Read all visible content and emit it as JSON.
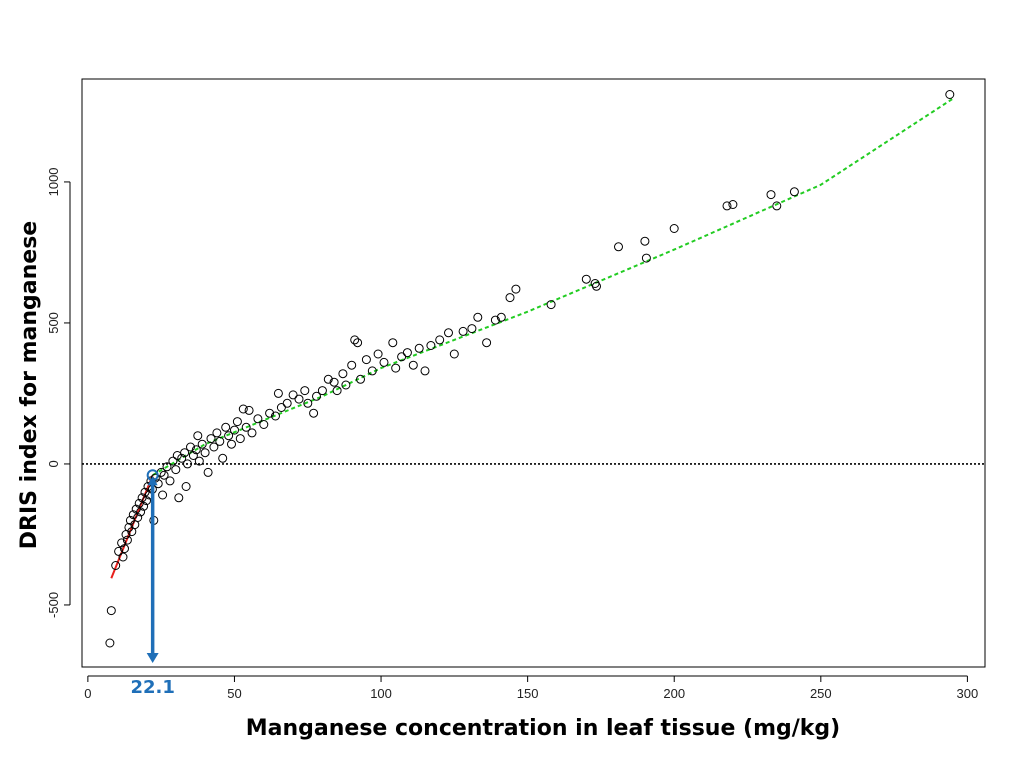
{
  "chart_data": {
    "type": "scatter",
    "title": "",
    "xlabel": "Manganese concentration in leaf tissue (mg/kg)",
    "ylabel": "DRIS index for manganese",
    "xlim": [
      -2,
      306
    ],
    "ylim": [
      -720,
      1365
    ],
    "xticks": [
      0,
      50,
      100,
      150,
      200,
      250,
      300
    ],
    "yticks": [
      -500,
      0,
      500,
      1000
    ],
    "grid": false,
    "zero_line": {
      "y": 0,
      "style": "dotted",
      "color": "#000000"
    },
    "cutoff": {
      "x": 22.1,
      "label": "22.1",
      "color": "#1f6fb8"
    },
    "colors": {
      "points": "#000000",
      "low_fit": "#e8201c",
      "high_fit": "#22cc22",
      "cutoff": "#1f6fb8"
    },
    "fits": [
      {
        "name": "low-range fit",
        "style": "solid",
        "color": "#e8201c",
        "points": [
          [
            8,
            -405
          ],
          [
            22.1,
            -40
          ]
        ]
      },
      {
        "name": "high-range fit",
        "style": "dashed",
        "color": "#22cc22",
        "points": [
          [
            22.1,
            -40
          ],
          [
            40,
            70
          ],
          [
            60,
            155
          ],
          [
            80,
            240
          ],
          [
            100,
            340
          ],
          [
            150,
            540
          ],
          [
            200,
            760
          ],
          [
            250,
            990
          ],
          [
            295,
            1295
          ]
        ]
      }
    ],
    "series": [
      {
        "name": "observations",
        "points": [
          [
            7.5,
            -635
          ],
          [
            8,
            -520
          ],
          [
            9.5,
            -360
          ],
          [
            10.5,
            -310
          ],
          [
            11.5,
            -280
          ],
          [
            12,
            -330
          ],
          [
            12.5,
            -300
          ],
          [
            13,
            -250
          ],
          [
            13.5,
            -270
          ],
          [
            14,
            -225
          ],
          [
            14.5,
            -200
          ],
          [
            15,
            -240
          ],
          [
            15.5,
            -180
          ],
          [
            16,
            -215
          ],
          [
            16.5,
            -160
          ],
          [
            17,
            -190
          ],
          [
            17.5,
            -140
          ],
          [
            18,
            -170
          ],
          [
            18.5,
            -120
          ],
          [
            19,
            -150
          ],
          [
            19.5,
            -100
          ],
          [
            20,
            -130
          ],
          [
            20.5,
            -80
          ],
          [
            21,
            -110
          ],
          [
            21.5,
            -60
          ],
          [
            22,
            -90
          ],
          [
            22.5,
            -200
          ],
          [
            23,
            -50
          ],
          [
            24,
            -70
          ],
          [
            25,
            -30
          ],
          [
            25.5,
            -110
          ],
          [
            26,
            -40
          ],
          [
            27,
            -10
          ],
          [
            28,
            -60
          ],
          [
            29,
            10
          ],
          [
            30,
            -20
          ],
          [
            30.5,
            30
          ],
          [
            31,
            -120
          ],
          [
            32,
            20
          ],
          [
            33,
            40
          ],
          [
            33.5,
            -80
          ],
          [
            34,
            0
          ],
          [
            35,
            60
          ],
          [
            36,
            30
          ],
          [
            37,
            50
          ],
          [
            37.5,
            100
          ],
          [
            38,
            10
          ],
          [
            39,
            70
          ],
          [
            40,
            40
          ],
          [
            41,
            -30
          ],
          [
            42,
            90
          ],
          [
            43,
            60
          ],
          [
            44,
            110
          ],
          [
            45,
            80
          ],
          [
            46,
            20
          ],
          [
            47,
            130
          ],
          [
            48,
            100
          ],
          [
            49,
            70
          ],
          [
            50,
            120
          ],
          [
            51,
            150
          ],
          [
            52,
            90
          ],
          [
            53,
            195
          ],
          [
            54,
            130
          ],
          [
            55,
            190
          ],
          [
            56,
            110
          ],
          [
            58,
            160
          ],
          [
            60,
            140
          ],
          [
            62,
            180
          ],
          [
            64,
            170
          ],
          [
            65,
            250
          ],
          [
            66,
            200
          ],
          [
            68,
            215
          ],
          [
            70,
            245
          ],
          [
            72,
            230
          ],
          [
            74,
            260
          ],
          [
            75,
            215
          ],
          [
            77,
            180
          ],
          [
            78,
            240
          ],
          [
            80,
            260
          ],
          [
            82,
            300
          ],
          [
            84,
            290
          ],
          [
            85,
            260
          ],
          [
            87,
            320
          ],
          [
            88,
            280
          ],
          [
            90,
            350
          ],
          [
            91,
            440
          ],
          [
            92,
            430
          ],
          [
            93,
            300
          ],
          [
            95,
            370
          ],
          [
            97,
            330
          ],
          [
            99,
            390
          ],
          [
            101,
            360
          ],
          [
            104,
            430
          ],
          [
            105,
            340
          ],
          [
            107,
            380
          ],
          [
            109,
            395
          ],
          [
            111,
            350
          ],
          [
            113,
            410
          ],
          [
            115,
            330
          ],
          [
            117,
            420
          ],
          [
            120,
            440
          ],
          [
            123,
            465
          ],
          [
            125,
            390
          ],
          [
            128,
            470
          ],
          [
            131,
            480
          ],
          [
            133,
            520
          ],
          [
            136,
            430
          ],
          [
            139,
            510
          ],
          [
            141,
            520
          ],
          [
            144,
            590
          ],
          [
            146,
            620
          ],
          [
            158,
            565
          ],
          [
            170,
            655
          ],
          [
            173,
            640
          ],
          [
            173.5,
            630
          ],
          [
            181,
            770
          ],
          [
            190,
            790
          ],
          [
            190.5,
            730
          ],
          [
            200,
            835
          ],
          [
            218,
            915
          ],
          [
            220,
            920
          ],
          [
            233,
            955
          ],
          [
            235,
            915
          ],
          [
            241,
            965
          ],
          [
            294,
            1310
          ]
        ]
      }
    ]
  }
}
